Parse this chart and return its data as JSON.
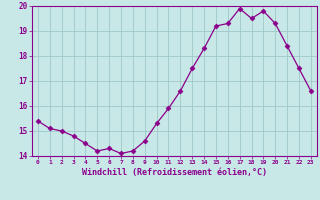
{
  "hours": [
    0,
    1,
    2,
    3,
    4,
    5,
    6,
    7,
    8,
    9,
    10,
    11,
    12,
    13,
    14,
    15,
    16,
    17,
    18,
    19,
    20,
    21,
    22,
    23
  ],
  "windchill": [
    15.4,
    15.1,
    15.0,
    14.8,
    14.5,
    14.2,
    14.3,
    14.1,
    14.2,
    14.6,
    15.3,
    15.9,
    16.6,
    17.5,
    18.3,
    19.2,
    19.3,
    19.9,
    19.5,
    19.8,
    19.3,
    18.4,
    17.5,
    16.6
  ],
  "ylim": [
    14,
    20
  ],
  "yticks": [
    14,
    15,
    16,
    17,
    18,
    19,
    20
  ],
  "xlabel": "Windchill (Refroidissement éolien,°C)",
  "line_color": "#8b008b",
  "marker": "D",
  "marker_size": 2.5,
  "bg_color": "#c8e8e8",
  "grid_color": "#a0c8c8"
}
